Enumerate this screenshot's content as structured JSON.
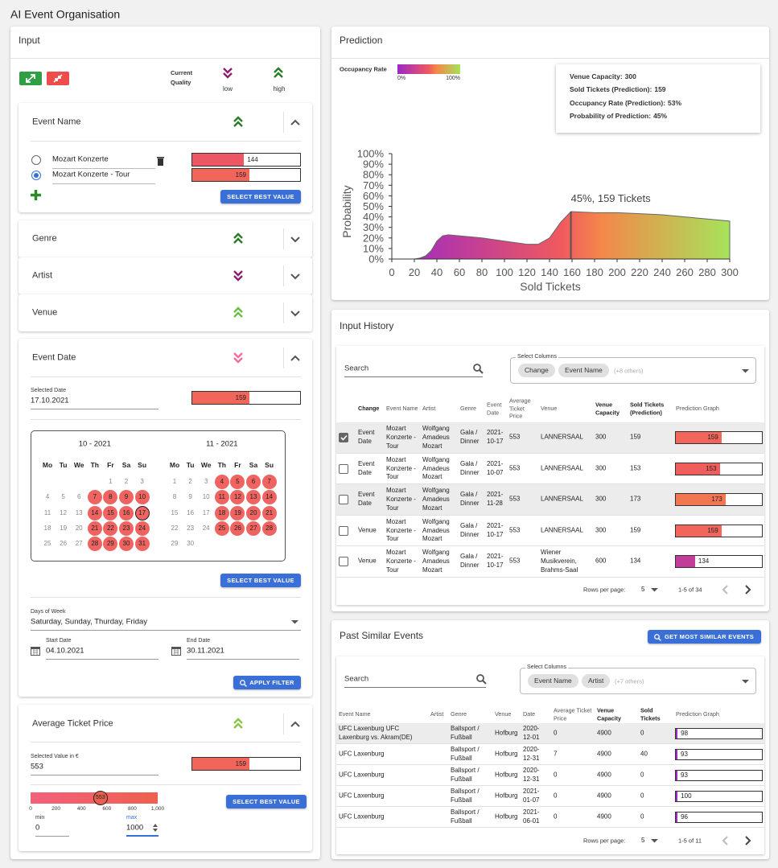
{
  "app_title": "AI Event Organisation",
  "input": {
    "title": "Input",
    "quality": {
      "label": "Current Quality",
      "low": "low",
      "high": "high"
    },
    "event_name": {
      "title": "Event Name",
      "options": [
        {
          "label": "Mozart Konzerte",
          "value": 144,
          "selected": false
        },
        {
          "label": "Mozart Konzerte - Tour",
          "value": 159,
          "selected": true
        }
      ],
      "button": "SELECT BEST VALUE"
    },
    "genre": {
      "title": "Genre"
    },
    "artist": {
      "title": "Artist"
    },
    "venue": {
      "title": "Venue"
    },
    "event_date": {
      "title": "Event Date",
      "selected_label": "Selected Date",
      "selected_value": "17.10.2021",
      "value": 159,
      "calendars": [
        {
          "title": "10 - 2021",
          "weekdays": [
            "Mo",
            "Tu",
            "We",
            "Th",
            "Fr",
            "Sa",
            "Su"
          ],
          "weeks": [
            [
              null,
              null,
              null,
              null,
              1,
              2,
              3
            ],
            [
              4,
              5,
              6,
              7,
              8,
              9,
              10
            ],
            [
              11,
              12,
              13,
              14,
              15,
              16,
              17
            ],
            [
              18,
              19,
              20,
              21,
              22,
              23,
              24
            ],
            [
              25,
              26,
              27,
              28,
              29,
              30,
              31
            ]
          ],
          "highlighted": [
            7,
            8,
            9,
            10,
            14,
            15,
            16,
            17,
            21,
            22,
            23,
            24,
            28,
            29,
            30,
            31
          ],
          "selected": 17
        },
        {
          "title": "11 - 2021",
          "weekdays": [
            "Mo",
            "Tu",
            "We",
            "Th",
            "Fr",
            "Sa",
            "Su"
          ],
          "weeks": [
            [
              1,
              2,
              3,
              4,
              5,
              6,
              7
            ],
            [
              8,
              9,
              10,
              11,
              12,
              13,
              14
            ],
            [
              15,
              16,
              17,
              18,
              19,
              20,
              21
            ],
            [
              22,
              23,
              24,
              25,
              26,
              27,
              28
            ],
            [
              29,
              30,
              null,
              null,
              null,
              null,
              null
            ]
          ],
          "highlighted": [
            4,
            5,
            6,
            7,
            11,
            12,
            13,
            14,
            18,
            19,
            20,
            21,
            25,
            26,
            27,
            28
          ]
        }
      ],
      "button": "SELECT BEST VALUE",
      "days_label": "Days of Week",
      "days_value": "Saturday, Sunday, Thurday, Friday",
      "start_label": "Start Date",
      "start_value": "04.10.2021",
      "end_label": "End Date",
      "end_value": "30.11.2021",
      "filter_button": "APPLY FILTER"
    },
    "ticket_price": {
      "title": "Average Ticket Price",
      "selected_label": "Selected Value in €",
      "selected_value": "553",
      "value": 159,
      "slider": {
        "ticks": [
          0,
          200,
          400,
          600,
          800,
          {
            "value": 1000,
            "label": "1,000"
          }
        ],
        "value": 553
      },
      "min_label": "min",
      "min_value": 0,
      "max_label": "max",
      "max_value": 1000,
      "button": "SELECT BEST VALUE"
    }
  },
  "prediction": {
    "title": "Prediction",
    "legend": {
      "label": "Occupancy Rate",
      "min": "0%",
      "max": "100%"
    },
    "info": [
      {
        "label": "Venue Capacity:",
        "value": 300
      },
      {
        "label": "Sold Tickets (Prediction):",
        "value": 159
      },
      {
        "label": "Occupancy Rate (Prediction):",
        "value": "53%"
      },
      {
        "label": "Probability of Prediction:",
        "value": "45%"
      }
    ]
  },
  "chart_data": {
    "type": "area",
    "annotation": "45%, 159 Tickets",
    "xlabel": "Sold Tickets",
    "ylabel": "Probability",
    "x": [
      0,
      10,
      20,
      25,
      30,
      35,
      40,
      45,
      50,
      60,
      80,
      100,
      120,
      130,
      140,
      150,
      159,
      180,
      200,
      220,
      240,
      260,
      280,
      300
    ],
    "values": [
      0,
      0,
      0,
      1,
      3,
      8,
      17,
      22,
      23,
      22,
      20,
      17,
      14,
      14,
      20,
      35,
      45,
      44,
      44,
      43,
      42,
      40,
      38,
      36
    ],
    "marker": 159,
    "xlim": [
      0,
      300
    ],
    "ylim": [
      0,
      100
    ],
    "xticks": [
      0,
      20,
      40,
      60,
      80,
      100,
      120,
      140,
      160,
      180,
      200,
      220,
      240,
      260,
      280,
      300
    ],
    "yticks": [
      {
        "value": 0,
        "label": "0%"
      },
      {
        "value": 10,
        "label": "10%"
      },
      {
        "value": 20,
        "label": "20%"
      },
      {
        "value": 30,
        "label": "30%"
      },
      {
        "value": 40,
        "label": "40%"
      },
      {
        "value": 50,
        "label": "50%"
      },
      {
        "value": 60,
        "label": "60%"
      },
      {
        "value": 70,
        "label": "70%"
      },
      {
        "value": 80,
        "label": "80%"
      },
      {
        "value": 90,
        "label": "90%"
      },
      {
        "value": 100,
        "label": "100%"
      }
    ]
  },
  "input_history": {
    "title": "Input History",
    "search": "Search",
    "columns_label": "Select Columns",
    "chips": [
      "Change",
      "Event Name"
    ],
    "chips_more": "(+8 others)",
    "headers": [
      "Change",
      "Event Name",
      "Artist",
      "Genre",
      "Event Date",
      "Average Ticket Price",
      "Venue",
      "Venue Capacity",
      "Sold Tickets (Prediction)",
      "Prediction Graph"
    ],
    "rows": [
      [
        "Event Date",
        "Mozart Konzerte - Tour",
        "Wolfgang Amadeus Mozart",
        "Gala / Dinner",
        "2021-10-17",
        553,
        "LANNERSAAL",
        300,
        159,
        159
      ],
      [
        "Event Date",
        "Mozart Konzerte - Tour",
        "Wolfgang Amadeus Mozart",
        "Gala / Dinner",
        "2021-10-07",
        553,
        "LANNERSAAL",
        300,
        153,
        153
      ],
      [
        "Event Date",
        "Mozart Konzerte - Tour",
        "Wolfgang Amadeus Mozart",
        "Gala / Dinner",
        "2021-11-28",
        553,
        "LANNERSAAL",
        300,
        173,
        173
      ],
      [
        "Venue",
        "Mozart Konzerte - Tour",
        "Wolfgang Amadeus Mozart",
        "Gala / Dinner",
        "2021-10-17",
        553,
        "LANNERSAAL",
        300,
        159,
        159
      ],
      [
        "Venue",
        "Mozart Konzerte - Tour",
        "Wolfgang Amadeus Mozart",
        "Gala / Dinner",
        "2021-10-17",
        553,
        "Wiener Musikverein, Brahms-Saal",
        600,
        134,
        134
      ]
    ],
    "checked": [
      true,
      false,
      false,
      false,
      false
    ],
    "shaded": [
      true,
      false,
      true,
      false,
      false
    ],
    "rows_per_page_label": "Rows per page:",
    "rows_per_page": 5,
    "range": "1-5 of 34"
  },
  "past_events": {
    "title": "Past Similar Events",
    "button": "GET MOST SIMILAR EVENTS",
    "search": "Search",
    "columns_label": "Select Columns",
    "chips": [
      "Event Name",
      "Artist"
    ],
    "chips_more": "(+7 others)",
    "headers": [
      "Event Name",
      "Artist",
      "Genre",
      "Venue",
      "Date",
      "Average Ticket Price",
      "Venue Capacity",
      "Sold Tickets",
      "Prediction Graph"
    ],
    "rows": [
      [
        "UFC Laxenburg UFC Laxenburg vs. Akram(DE)",
        null,
        "Ballsport / Fußball",
        "Hofburg",
        "2020-12-01",
        0,
        4900,
        0,
        98
      ],
      [
        "UFC Laxenburg",
        null,
        "Ballsport / Fußball",
        "Hofburg",
        "2020-12-31",
        7,
        4900,
        40,
        93
      ],
      [
        "UFC Laxenburg",
        null,
        "Ballsport / Fußball",
        "Hofburg",
        "2020-12-31",
        0,
        4900,
        0,
        93
      ],
      [
        "UFC Laxenburg",
        null,
        "Ballsport / Fußball",
        "Hofburg",
        "2021-01-07",
        0,
        4900,
        0,
        100
      ],
      [
        "UFC Laxenburg",
        null,
        "Ballsport / Fußball",
        "Hofburg",
        "2021-06-01",
        0,
        4900,
        0,
        96
      ]
    ],
    "shaded": [
      true,
      false,
      false,
      false,
      false
    ],
    "rows_per_page_label": "Rows per page:",
    "rows_per_page": 5,
    "range": "1-5 of 11"
  }
}
